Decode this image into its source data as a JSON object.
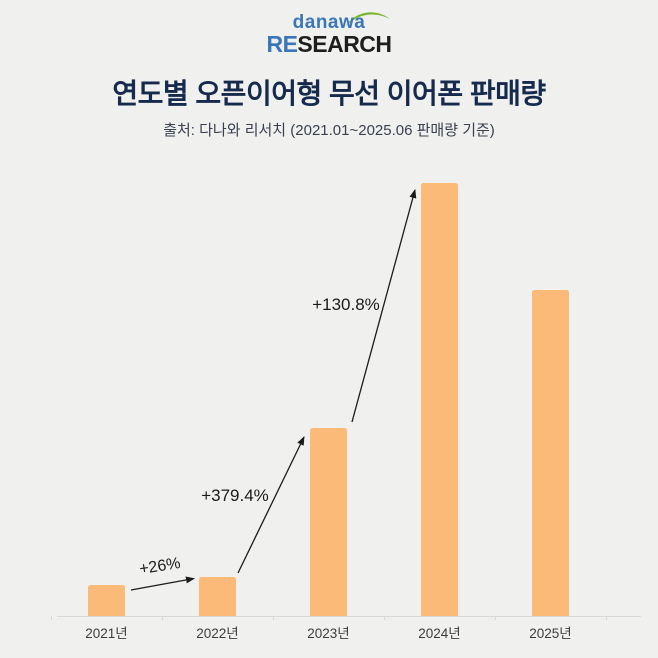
{
  "logo": {
    "brand": "danawa",
    "research_re": "RE",
    "research_rest": "SEARCH"
  },
  "header": {
    "title": "연도별 오픈이어형 무선 이어폰 판매량",
    "subtitle": "출처: 다나와 리서치 (2021.01~2025.06 판매량 기준)"
  },
  "chart_data": {
    "type": "bar",
    "categories": [
      "2021년",
      "2022년",
      "2023년",
      "2024년",
      "2025년"
    ],
    "values": [
      100,
      126,
      604,
      1394,
      1048
    ],
    "values_note": "relative sales index estimated from bar heights; 2021 = 100; no numeric y-axis shown",
    "growth_annotations": [
      {
        "label": "+26%",
        "from": "2021년",
        "to": "2022년"
      },
      {
        "label": "+379.4%",
        "from": "2022년",
        "to": "2023년"
      },
      {
        "label": "+130.8%",
        "from": "2023년",
        "to": "2024년"
      }
    ],
    "title": "연도별 오픈이어형 무선 이어폰 판매량",
    "xlabel": "",
    "ylabel": "",
    "legend": "none",
    "grid": "off",
    "bar_color": "#fbba77"
  },
  "colors": {
    "bg": "#f0f0ee",
    "bar-color": "#fbba77",
    "title-color": "#152a4d",
    "subtitle-color": "#3a4150",
    "label-color": "#3c3c3c",
    "annotation-color": "#1b1b1b",
    "axis-color": "#d9d9d5",
    "logo-blue": "#3a76b9",
    "logo-green": "#79b530",
    "logo-dark": "#1e1e1c"
  }
}
